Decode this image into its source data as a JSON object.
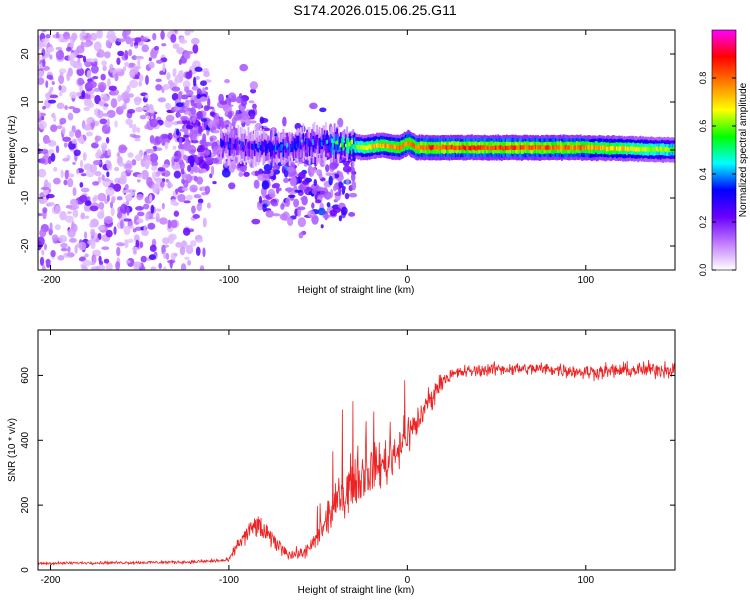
{
  "title": "S174.2026.015.06.25.G11",
  "chart_data": [
    {
      "type": "heatmap",
      "xlabel": "Height of straight line (km)",
      "ylabel": "Frequency (Hz)",
      "xlim": [
        -207,
        150
      ],
      "ylim": [
        -25,
        25
      ],
      "xticks": [
        -200,
        -100,
        0,
        100
      ],
      "yticks": [
        -20,
        -10,
        0,
        10,
        20
      ],
      "colorbar": {
        "label": "Normalized spectral amplitude",
        "range": [
          0,
          1
        ],
        "ticks": [
          "0.0",
          "0.2",
          "0.4",
          "0.6",
          "0.8"
        ],
        "stops": [
          "#ffffff",
          "#c27bff",
          "#6a00ff",
          "#0000ff",
          "#00ffff",
          "#00ff00",
          "#ffff00",
          "#ff8000",
          "#ff0000",
          "#ff00ff"
        ]
      },
      "series": [
        {
          "name": "ridge_centre_frequency",
          "x": [
            -105,
            -90,
            -70,
            -50,
            -35,
            -25,
            -15,
            -5,
            0,
            5,
            20,
            60,
            100,
            150
          ],
          "y": [
            1.5,
            0.5,
            0.5,
            1.5,
            1.0,
            0.5,
            1.0,
            0.5,
            1.5,
            0.5,
            0.5,
            0.5,
            0.5,
            0
          ]
        },
        {
          "name": "ridge_peak_amplitude",
          "x": [
            -105,
            -90,
            -70,
            -50,
            -35,
            -25,
            -15,
            0,
            10,
            60,
            100,
            150
          ],
          "y": [
            0.3,
            0.25,
            0.35,
            0.3,
            0.5,
            0.7,
            0.75,
            0.8,
            0.85,
            0.85,
            0.8,
            0.6
          ]
        }
      ],
      "noise_regions": [
        {
          "x": [
            -207,
            -110
          ],
          "freq_spread": [
            -25,
            25
          ],
          "density": "high",
          "amplitude": [
            0.05,
            0.2
          ]
        },
        {
          "x": [
            -130,
            -85
          ],
          "freq_spread": [
            -12,
            18
          ],
          "density": "medium",
          "amplitude": [
            0.1,
            0.25
          ]
        },
        {
          "x": [
            -85,
            -30
          ],
          "freq_spread": [
            -20,
            12
          ],
          "density": "medium",
          "amplitude": [
            0.1,
            0.3
          ]
        }
      ]
    },
    {
      "type": "line",
      "xlabel": "Height of straight line (km)",
      "ylabel": "SNR (10 * v/v)",
      "xlim": [
        -207,
        150
      ],
      "ylim": [
        0,
        740
      ],
      "xticks": [
        -200,
        -100,
        0,
        100
      ],
      "yticks": [
        0,
        200,
        400,
        600
      ],
      "color": "#ee2222",
      "x": [
        -207,
        -180,
        -150,
        -120,
        -100,
        -95,
        -85,
        -75,
        -65,
        -55,
        -48,
        -40,
        -30,
        -20,
        -10,
        0,
        5,
        10,
        20,
        30,
        50,
        80,
        100,
        120,
        150
      ],
      "y": [
        20,
        22,
        23,
        25,
        30,
        80,
        140,
        90,
        45,
        60,
        120,
        200,
        280,
        310,
        340,
        420,
        450,
        500,
        590,
        610,
        620,
        620,
        610,
        615,
        620
      ],
      "noise": [
        6,
        6,
        7,
        8,
        10,
        30,
        60,
        40,
        25,
        40,
        60,
        90,
        120,
        110,
        110,
        90,
        80,
        60,
        35,
        30,
        30,
        30,
        35,
        35,
        40
      ]
    }
  ]
}
